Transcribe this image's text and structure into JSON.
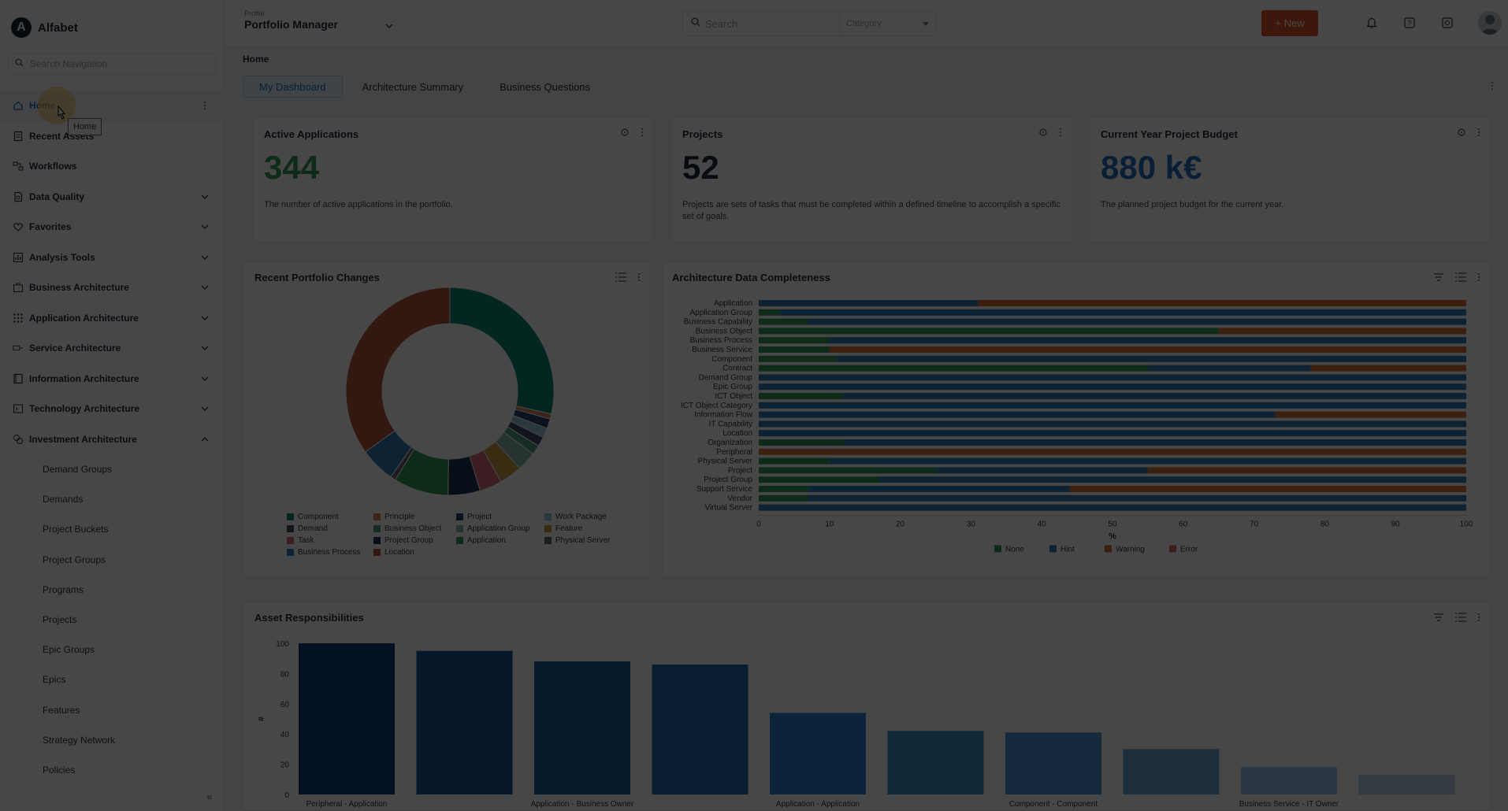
{
  "brand": {
    "logo_letter": "A",
    "name": "Alfabet"
  },
  "nav_search": {
    "placeholder": "Search Navigation"
  },
  "nav": {
    "items": [
      {
        "label": "Home",
        "icon": "home-icon"
      },
      {
        "label": "Recent Assets",
        "icon": "document-icon"
      },
      {
        "label": "Workflows",
        "icon": "workflow-icon"
      },
      {
        "label": "Data Quality",
        "icon": "data-quality-icon"
      },
      {
        "label": "Favorites",
        "icon": "heart-icon"
      },
      {
        "label": "Analysis Tools",
        "icon": "analysis-icon"
      },
      {
        "label": "Business Architecture",
        "icon": "building-icon"
      },
      {
        "label": "Application Architecture",
        "icon": "grid-icon"
      },
      {
        "label": "Service Architecture",
        "icon": "service-icon"
      },
      {
        "label": "Information Architecture",
        "icon": "book-icon"
      },
      {
        "label": "Technology Architecture",
        "icon": "terminal-icon"
      },
      {
        "label": "Investment Architecture",
        "icon": "investment-icon"
      }
    ],
    "sub_items": [
      "Demand Groups",
      "Demands",
      "Project Buckets",
      "Project Groups",
      "Programs",
      "Projects",
      "Epic Groups",
      "Epics",
      "Features",
      "Strategy Network",
      "Policies"
    ],
    "tooltip": "Home"
  },
  "topbar": {
    "profile_caption": "Profile",
    "profile_value": "Portfolio Manager",
    "search_placeholder": "Search",
    "category_placeholder": "Category",
    "new_label": "New"
  },
  "breadcrumb": "Home",
  "tabs": [
    "My Dashboard",
    "Architecture Summary",
    "Business Questions"
  ],
  "kpis": [
    {
      "title": "Active Applications",
      "value": "344",
      "desc": "The number of active applications in the portfolio.",
      "color": "#2f9a57"
    },
    {
      "title": "Projects",
      "value": "52",
      "desc": "Projects are sets of tasks that must be completed within a defined timeline to accomplish a specific set of goals.",
      "color": "#1e2a36"
    },
    {
      "title": "Current Year Project Budget",
      "value": "880 k€",
      "desc": "The planned project budget for the current year.",
      "color": "#1f6fc0"
    }
  ],
  "chart_data": [
    {
      "type": "pie",
      "title": "Recent Portfolio Changes",
      "donut": true,
      "categories": [
        "Component",
        "Principle",
        "Project",
        "Work Package",
        "Demand",
        "Business Object",
        "Application Group",
        "Feature",
        "Task",
        "Project Group",
        "Application",
        "Physical Server",
        "Business Process",
        "Location"
      ],
      "values": [
        28.5,
        0.8,
        1.5,
        1.5,
        1.5,
        1.5,
        3.0,
        3.5,
        3.5,
        5.0,
        8.5,
        0.8,
        5.5,
        34.9
      ],
      "colors": [
        "#0e8a72",
        "#d2875a",
        "#25476e",
        "#8fc8d8",
        "#4a4a6a",
        "#4fa37f",
        "#8bb8a8",
        "#c8a040",
        "#d86a7a",
        "#1c3558",
        "#2f9a57",
        "#666677",
        "#2f7ab8",
        "#b4573a"
      ],
      "legend_position": "bottom"
    },
    {
      "type": "bar",
      "orientation": "horizontal",
      "stacked": true,
      "title": "Architecture Data Completeness",
      "xlabel": "%",
      "xlim": [
        0,
        100
      ],
      "x_ticks": [
        0,
        10,
        20,
        30,
        40,
        50,
        60,
        70,
        80,
        90,
        100
      ],
      "categories": [
        "Application",
        "Application Group",
        "Business Capability",
        "Business Object",
        "Business Process",
        "Business Service",
        "Component",
        "Contract",
        "Demand Group",
        "Epic Group",
        "ICT Object",
        "ICT Object Category",
        "Information Flow",
        "IT Capability",
        "Location",
        "Organization",
        "Peripheral",
        "Physical Server",
        "Project",
        "Project Group",
        "Support Service",
        "Vendor",
        "Virtual Server"
      ],
      "series": [
        {
          "name": "None",
          "color": "#2f9a57",
          "values": [
            0,
            3,
            7,
            65,
            10,
            10,
            11,
            55,
            0,
            0,
            12,
            0,
            0,
            0,
            0,
            12,
            0,
            10,
            25,
            17,
            7,
            7,
            0
          ]
        },
        {
          "name": "Hint",
          "color": "#2f7ab8",
          "values": [
            31,
            97,
            93,
            0,
            90,
            0,
            89,
            23,
            100,
            100,
            88,
            100,
            73,
            100,
            100,
            88,
            0,
            90,
            30,
            83,
            37,
            93,
            100
          ]
        },
        {
          "name": "Warning",
          "color": "#d2733a",
          "values": [
            69,
            0,
            0,
            35,
            0,
            90,
            0,
            22,
            0,
            0,
            0,
            0,
            27,
            0,
            0,
            0,
            100,
            0,
            45,
            0,
            56,
            0,
            0
          ]
        },
        {
          "name": "Error",
          "color": "#d86a5a",
          "values": [
            0,
            0,
            0,
            0,
            0,
            0,
            0,
            0,
            0,
            0,
            0,
            0,
            0,
            0,
            0,
            0,
            0,
            0,
            0,
            0,
            0,
            0,
            0
          ]
        }
      ],
      "legend_position": "bottom"
    },
    {
      "type": "bar",
      "title": "Asset Responsibilities",
      "ylabel": "#",
      "ylim": [
        0,
        100
      ],
      "y_ticks": [
        0,
        20,
        40,
        60,
        80,
        100
      ],
      "categories": [
        "Peripheral - Application",
        "",
        "Application - Business Owner",
        "",
        "Application - Application",
        "",
        "Component - Component",
        "",
        "Business Service - IT Owner",
        ""
      ],
      "values": [
        100,
        95,
        88,
        86,
        54,
        42,
        41,
        30,
        18,
        13
      ],
      "colors": [
        "#0f3f7a",
        "#14528f",
        "#1a5f9c",
        "#1f6aa8",
        "#2d82d0",
        "#3d8fc0",
        "#4d95d6",
        "#6aa6dc",
        "#93bee6",
        "#b9d3ee"
      ]
    }
  ]
}
